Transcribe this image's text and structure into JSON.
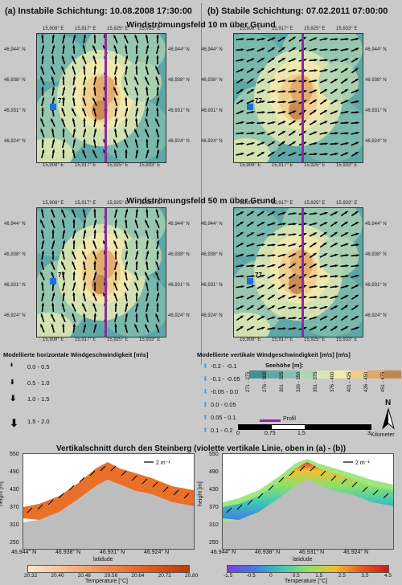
{
  "headers": {
    "left": "(a) Instabile Schichtung: 10.08.2008 17:30:00",
    "right": "(b) Stabile Schichtung: 07.02.2011 07:00:00"
  },
  "titles": {
    "wind10": "Windströmungsfeld 10 m über Grund",
    "wind50": "Windströmungsfeld 50 m über Grund",
    "vertical": "Vertikalschnitt durch den Steinberg (violette vertikale Linie, oben in (a) - (b))"
  },
  "map_axes": {
    "x_ticks": [
      "15,908° E",
      "15,917° E",
      "15,925° E",
      "15,933° E"
    ],
    "y_ticks": [
      "46,944° N",
      "46,938° N",
      "46,931° N",
      "46,924° N"
    ]
  },
  "station_label": "77",
  "legend_horizontal": {
    "title": "Modellierte horizontale Windgeschwindigkeit [m\\s]",
    "items": [
      "0.0 - 0.5",
      "0.5 - 1.0",
      "1.0 - 1.5",
      "1.5 - 2.0"
    ]
  },
  "legend_vertical": {
    "title": "Modellierte vertikale Windgeschwindigkeit [m\\s] [m\\s]",
    "items": [
      "-0.2 - -0.1",
      "-0.1 - -0.05",
      "-0.05 - 0.0",
      "0.0 - 0.05",
      "0.05 - 0.1",
      "0.1 - 0.2"
    ]
  },
  "legend_height": {
    "title": "Seehöhe [m]:",
    "classes": [
      "271 - 275",
      "276 - 300",
      "301 - 325",
      "326 - 350",
      "351 - 375",
      "376 - 400",
      "401 - 425",
      "426 - 450",
      "451 - 475"
    ],
    "colors": [
      "#3f8f96",
      "#5fa7a6",
      "#86bfb0",
      "#b1d4b3",
      "#dbe6b4",
      "#f3e8ad",
      "#eecd8d",
      "#dfa86a",
      "#c4844d"
    ]
  },
  "scalebar": {
    "profile_label": "Profil",
    "ticks": [
      "0",
      "0,75",
      "1,5",
      "3"
    ],
    "unit": "Kilometer",
    "north": "N"
  },
  "vertical_sections": {
    "y_label": "height [m]",
    "y_ticks": [
      "550",
      "490",
      "430",
      "370",
      "310",
      "250"
    ],
    "x_ticks": [
      "46.944° N",
      "46.938° N",
      "46.931° N",
      "46.924° N"
    ],
    "x_label": "latidude",
    "arrow_label": "2 m⁻¹",
    "colorbar_label": "Temperature [°C]",
    "left_colorbar_ticks": [
      "20.32",
      "20.40",
      "20.48",
      "20.56",
      "20.64",
      "20.72",
      "20.80"
    ],
    "right_colorbar_ticks": [
      "-1.5",
      "-0.5",
      "0",
      "0.5",
      "1.5",
      "2.5",
      "3.5",
      "4.5"
    ]
  }
}
